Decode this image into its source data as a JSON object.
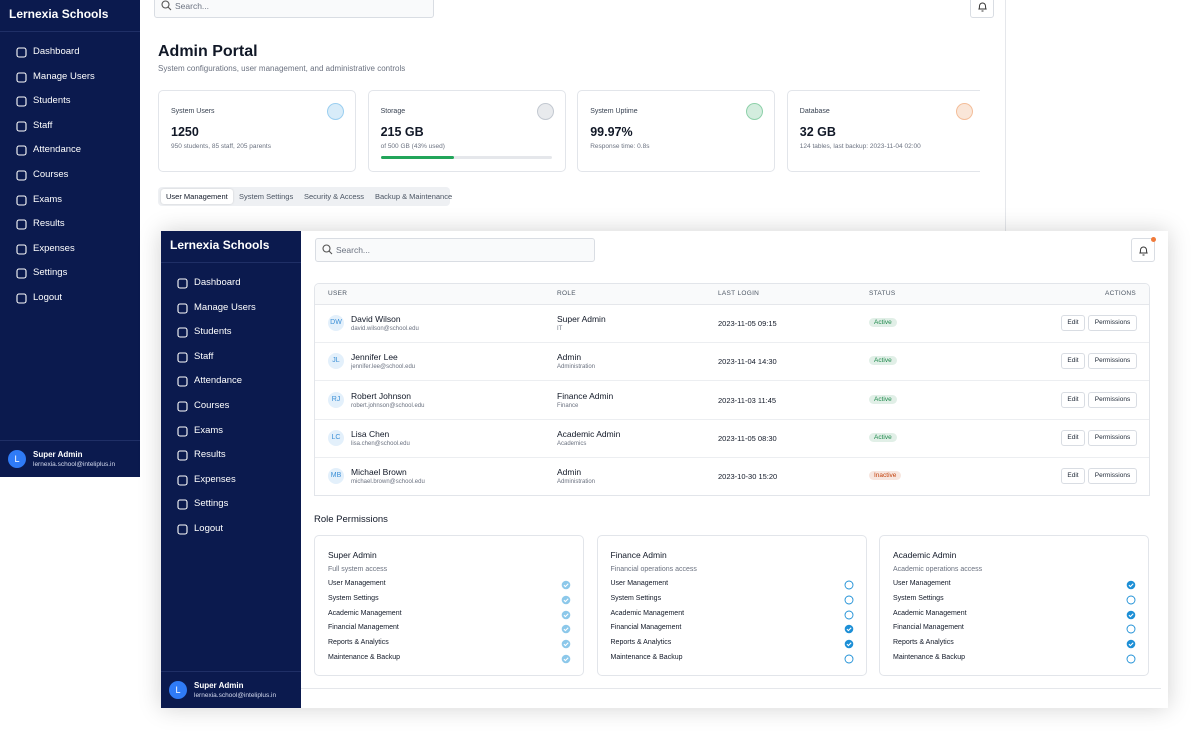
{
  "sidebar": {
    "brand": "Lernexia Schools",
    "nav": [
      "Dashboard",
      "Manage Users",
      "Students",
      "Staff",
      "Attendance",
      "Courses",
      "Exams",
      "Results",
      "Expenses",
      "Settings",
      "Logout"
    ],
    "user": {
      "initial": "L",
      "name": "Super Admin",
      "email": "lernexia.school@inteliplus.in"
    }
  },
  "search_placeholder": "Search...",
  "back_window": {
    "title": "Admin Portal",
    "subtitle": "System configurations, user management, and administrative controls",
    "stats": [
      {
        "label": "System Users",
        "value": 1250,
        "detail": "950 students, 85 staff, 205 parents",
        "accent": "#3b9fe0"
      },
      {
        "label": "Storage",
        "value": "215 GB",
        "detail": "of 500 GB (43% used)",
        "progress": 43,
        "accent": "#8a94a6"
      },
      {
        "label": "System Uptime",
        "value": "99.97%",
        "detail": "Response time: 0.8s",
        "accent": "#22a55a"
      },
      {
        "label": "Database",
        "value": "32 GB",
        "detail": "124 tables, last backup: 2023-11-04 02:00",
        "accent": "#e8803a"
      }
    ],
    "tabs": [
      "User Management",
      "System Settings",
      "Security & Access",
      "Backup & Maintenance"
    ]
  },
  "users_table": {
    "headers": [
      "USER",
      "ROLE",
      "LAST LOGIN",
      "STATUS",
      "ACTIONS"
    ],
    "rows": [
      {
        "initials": "DW",
        "name": "David Wilson",
        "email": "david.wilson@school.edu",
        "role": "Super Admin",
        "department": "IT",
        "last_login": "2023-11-05 09:15",
        "status": "Active",
        "status_color": "#1f8a4c",
        "actions": [
          "Edit",
          "Permissions"
        ]
      },
      {
        "initials": "JL",
        "name": "Jennifer Lee",
        "email": "jennifer.lee@school.edu",
        "role": "Admin",
        "department": "Administration",
        "last_login": "2023-11-04 14:30",
        "status": "Active",
        "status_color": "#1f8a4c",
        "actions": [
          "Edit",
          "Permissions"
        ]
      },
      {
        "initials": "RJ",
        "name": "Robert Johnson",
        "email": "robert.johnson@school.edu",
        "role": "Finance Admin",
        "department": "Finance",
        "last_login": "2023-11-03 11:45",
        "status": "Active",
        "status_color": "#1f8a4c",
        "actions": [
          "Edit",
          "Permissions"
        ]
      },
      {
        "initials": "LC",
        "name": "Lisa Chen",
        "email": "lisa.chen@school.edu",
        "role": "Academic Admin",
        "department": "Academics",
        "last_login": "2023-11-05 08:30",
        "status": "Active",
        "status_color": "#1f8a4c",
        "actions": [
          "Edit",
          "Permissions"
        ]
      },
      {
        "initials": "MB",
        "name": "Michael Brown",
        "email": "michael.brown@school.edu",
        "role": "Admin",
        "department": "Administration",
        "last_login": "2023-10-30 15:20",
        "status": "Inactive",
        "status_color": "#c2410c",
        "actions": [
          "Edit",
          "Permissions"
        ]
      }
    ]
  },
  "role_permissions": {
    "title": "Role Permissions",
    "roles": [
      {
        "name": "Super Admin",
        "description": "Full system access",
        "check_color": "#8cc8ea",
        "permissions": [
          {
            "name": "User Management",
            "granted": true
          },
          {
            "name": "System Settings",
            "granted": true
          },
          {
            "name": "Academic Management",
            "granted": true
          },
          {
            "name": "Financial Management",
            "granted": true
          },
          {
            "name": "Reports & Analytics",
            "granted": true
          },
          {
            "name": "Maintenance & Backup",
            "granted": true
          }
        ]
      },
      {
        "name": "Finance Admin",
        "description": "Financial operations access",
        "check_color": "#1d8fd6",
        "permissions": [
          {
            "name": "User Management",
            "granted": false
          },
          {
            "name": "System Settings",
            "granted": false
          },
          {
            "name": "Academic Management",
            "granted": false
          },
          {
            "name": "Financial Management",
            "granted": true
          },
          {
            "name": "Reports & Analytics",
            "granted": true
          },
          {
            "name": "Maintenance & Backup",
            "granted": false
          }
        ]
      },
      {
        "name": "Academic Admin",
        "description": "Academic operations access",
        "check_color": "#1d8fd6",
        "permissions": [
          {
            "name": "User Management",
            "granted": true
          },
          {
            "name": "System Settings",
            "granted": false
          },
          {
            "name": "Academic Management",
            "granted": true
          },
          {
            "name": "Financial Management",
            "granted": false
          },
          {
            "name": "Reports & Analytics",
            "granted": true
          },
          {
            "name": "Maintenance & Backup",
            "granted": false
          }
        ]
      }
    ]
  }
}
